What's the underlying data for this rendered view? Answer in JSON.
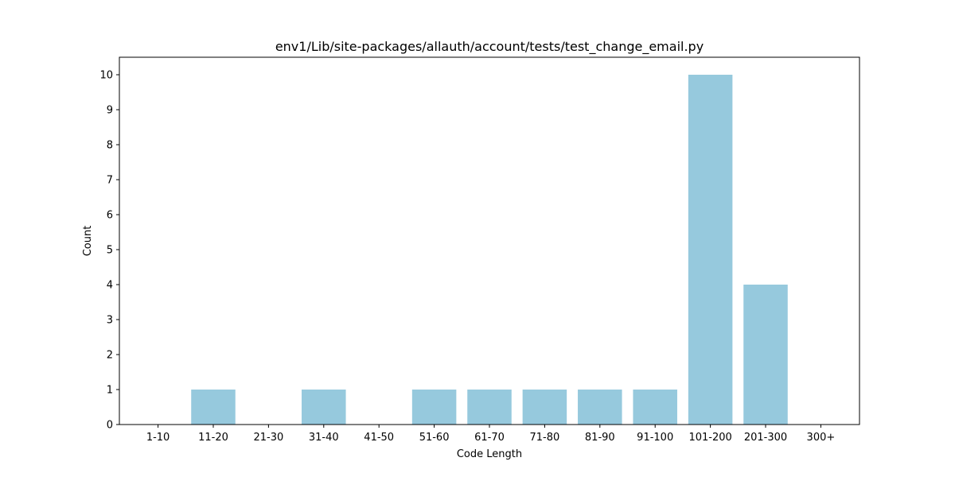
{
  "chart_data": {
    "type": "bar",
    "title": "env1/Lib/site-packages/allauth/account/tests/test_change_email.py",
    "xlabel": "Code Length",
    "ylabel": "Count",
    "categories": [
      "1-10",
      "11-20",
      "21-30",
      "31-40",
      "41-50",
      "51-60",
      "61-70",
      "71-80",
      "81-90",
      "91-100",
      "101-200",
      "201-300",
      "300+"
    ],
    "values": [
      0,
      1,
      0,
      1,
      0,
      1,
      1,
      1,
      1,
      1,
      10,
      4,
      0
    ],
    "ylim": [
      0,
      10.5
    ],
    "yticks": [
      0,
      1,
      2,
      3,
      4,
      5,
      6,
      7,
      8,
      9,
      10
    ],
    "bar_color": "#96c9dd",
    "grid": false,
    "legend": "none"
  }
}
